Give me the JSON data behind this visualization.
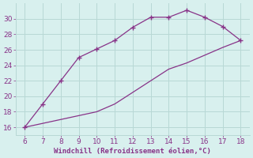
{
  "upper_x": [
    6,
    7,
    8,
    9,
    10,
    11,
    12,
    13,
    14,
    15,
    16,
    17,
    18
  ],
  "upper_y": [
    16,
    19,
    22,
    25,
    26.1,
    27.2,
    28.9,
    30.2,
    30.2,
    31.1,
    30.2,
    29.0,
    27.2
  ],
  "lower_x": [
    6,
    7,
    8,
    9,
    10,
    11,
    12,
    13,
    14,
    15,
    16,
    17,
    18
  ],
  "lower_y": [
    16,
    16.5,
    17.0,
    17.5,
    18.0,
    19.0,
    20.5,
    22.0,
    23.5,
    24.3,
    25.3,
    26.3,
    27.2
  ],
  "line_color": "#883388",
  "marker": "+",
  "bg_color": "#d8f0ee",
  "grid_color": "#b8d8d5",
  "xlabel": "Windchill (Refroidissement éolien,°C)",
  "xlim": [
    5.5,
    18.5
  ],
  "ylim": [
    15,
    32
  ],
  "xticks": [
    6,
    7,
    8,
    9,
    10,
    11,
    12,
    13,
    14,
    15,
    16,
    17,
    18
  ],
  "yticks": [
    16,
    18,
    20,
    22,
    24,
    26,
    28,
    30
  ],
  "tick_fontsize": 6.5,
  "xlabel_fontsize": 6.5,
  "label_color": "#883388"
}
